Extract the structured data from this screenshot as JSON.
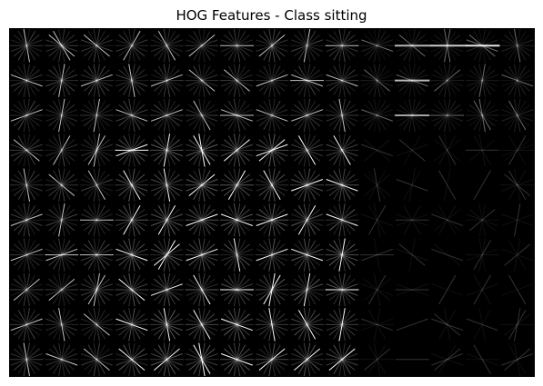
{
  "figure": {
    "title": "HOG Features - Class sitting"
  },
  "image": {
    "kind": "HOG visualization",
    "background_color": "#000000",
    "stroke_color": "#ffffff",
    "grid": {
      "rows": 10,
      "cols": 15
    }
  }
}
